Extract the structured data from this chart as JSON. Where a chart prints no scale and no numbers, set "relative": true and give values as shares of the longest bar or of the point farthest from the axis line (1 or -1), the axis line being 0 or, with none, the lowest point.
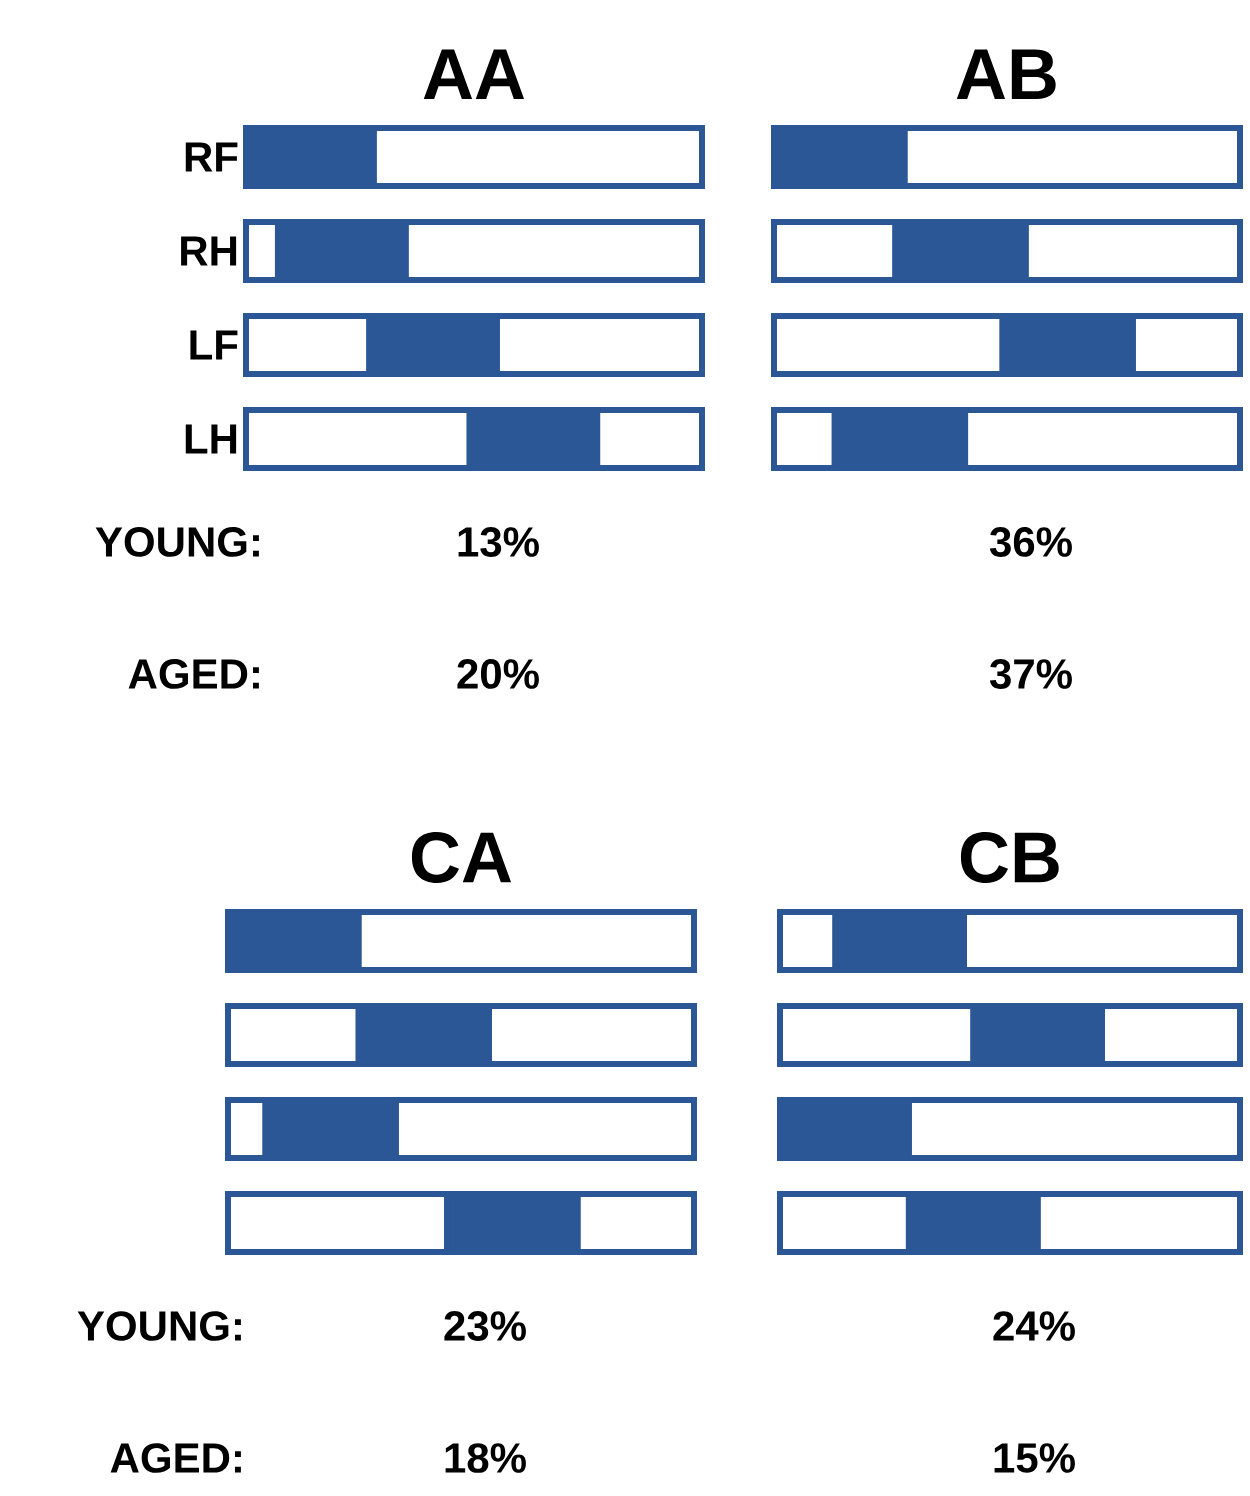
{
  "chart_data": [
    {
      "type": "bar",
      "orientation": "horizontal",
      "stacked": true,
      "relative": true,
      "title": "AA",
      "categories": [
        "RF",
        "RH",
        "LF",
        "LH"
      ],
      "series": [
        {
          "color": "#ffffff",
          "values": [
            0,
            0.07,
            0.27,
            0.49
          ]
        },
        {
          "color": "#2b5797",
          "values": [
            0.28,
            0.28,
            0.28,
            0.28
          ]
        },
        {
          "color": "#ffffff",
          "values": [
            0.72,
            0.65,
            0.45,
            0.23
          ]
        }
      ],
      "annotations": [
        "YOUNG:",
        "13%",
        "AGED:",
        "20%"
      ]
    },
    {
      "type": "bar",
      "orientation": "horizontal",
      "stacked": true,
      "relative": true,
      "title": "AB",
      "categories": [
        null,
        null,
        null,
        null
      ],
      "series": [
        {
          "color": "#ffffff",
          "values": [
            0,
            0.26,
            0.49,
            0.13
          ]
        },
        {
          "color": "#2b5797",
          "values": [
            0.28,
            0.28,
            0.28,
            0.28
          ]
        },
        {
          "color": "#ffffff",
          "values": [
            0.72,
            0.46,
            0.23,
            0.59
          ]
        }
      ],
      "annotations": [
        "36%",
        "37%"
      ]
    },
    {
      "type": "bar",
      "orientation": "horizontal",
      "stacked": true,
      "relative": true,
      "title": "CA",
      "categories": [
        null,
        null,
        null,
        null
      ],
      "series": [
        {
          "color": "#ffffff",
          "values": [
            0,
            0.28,
            0.08,
            0.47
          ]
        },
        {
          "color": "#2b5797",
          "values": [
            0.28,
            0.28,
            0.28,
            0.28
          ]
        },
        {
          "color": "#ffffff",
          "values": [
            0.72,
            0.44,
            0.64,
            0.25
          ]
        }
      ],
      "annotations": [
        "YOUNG:",
        "23%",
        "AGED:",
        "18%"
      ]
    },
    {
      "type": "bar",
      "orientation": "horizontal",
      "stacked": true,
      "relative": true,
      "title": "CB",
      "categories": [
        null,
        null,
        null,
        null
      ],
      "series": [
        {
          "color": "#ffffff",
          "values": [
            0.12,
            0.42,
            0,
            0.28
          ]
        },
        {
          "color": "#2b5797",
          "values": [
            0.28,
            0.28,
            0.28,
            0.28
          ]
        },
        {
          "color": "#ffffff",
          "values": [
            0.6,
            0.3,
            0.72,
            0.44
          ]
        }
      ],
      "annotations": [
        "24%",
        "15%"
      ]
    }
  ]
}
